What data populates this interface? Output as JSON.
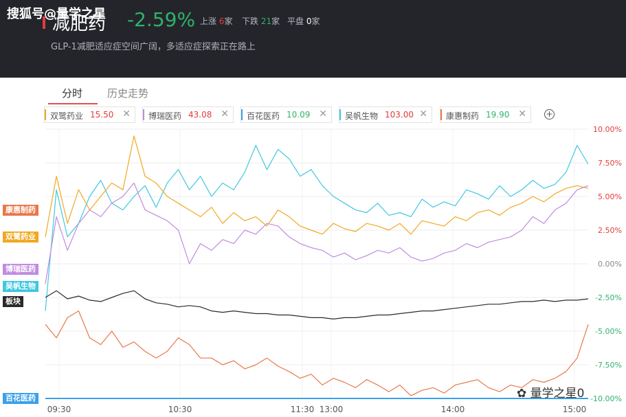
{
  "header": {
    "watermark": "搜狐号@量学之星",
    "title": "减肥药",
    "change": "-2.59%",
    "subtitle": "GLP-1减肥适应症空间广阔，多适应症探索正在路上",
    "stats": [
      {
        "label": "上涨",
        "value": "6",
        "unit": "家",
        "color": "#e23b3b"
      },
      {
        "label": "下跌",
        "value": "21",
        "unit": "家",
        "color": "#2fb26b"
      },
      {
        "label": "平盘",
        "value": "0",
        "unit": "家",
        "color": "#ffffff"
      }
    ]
  },
  "tabs": [
    {
      "label": "分时",
      "active": true
    },
    {
      "label": "历史走势",
      "active": false
    }
  ],
  "tags": [
    {
      "name": "双鹭药业",
      "price": "15.50",
      "color": "#f0a820",
      "price_color": "#e23b3b"
    },
    {
      "name": "博瑞医药",
      "price": "43.08",
      "color": "#c08be0",
      "price_color": "#e23b3b"
    },
    {
      "name": "百花医药",
      "price": "10.09",
      "color": "#3aa0e8",
      "price_color": "#2fb26b"
    },
    {
      "name": "吴帆生物",
      "price": "103.00",
      "color": "#3ec8e0",
      "price_color": "#e23b3b"
    },
    {
      "name": "康惠制药",
      "price": "19.90",
      "color": "#e8784a",
      "price_color": "#2fb26b"
    }
  ],
  "add_symbol": "+",
  "side_labels": [
    {
      "name": "康惠制药",
      "color": "#e8784a",
      "value": 4.0
    },
    {
      "name": "双鹭药业",
      "color": "#f0a820",
      "value": 2.0
    },
    {
      "name": "博瑞医药",
      "color": "#c08be0",
      "value": -0.4
    },
    {
      "name": "吴帆生物",
      "color": "#3ec8e0",
      "value": -1.7
    },
    {
      "name": "板块",
      "color": "#2a2a2a",
      "value": -2.8
    },
    {
      "name": "百花医药",
      "color": "#3aa0e8",
      "value": -10.0
    }
  ],
  "bottom_watermark": "量学之星0",
  "chart_data": {
    "type": "line",
    "x_ticks": [
      "09:30",
      "10:30",
      "11:30",
      "13:00",
      "14:00",
      "15:00"
    ],
    "y_ticks": [
      "10.00%",
      "7.50%",
      "5.00%",
      "2.50%",
      "0.00%",
      "-2.50%",
      "-5.00%",
      "-7.50%",
      "-10.00%"
    ],
    "ylim": [
      -10.0,
      10.0
    ],
    "y_tick_values": [
      10,
      7.5,
      5,
      2.5,
      0,
      -2.5,
      -5,
      -7.5,
      -10
    ],
    "grid": true,
    "series": [
      {
        "name": "吴帆生物",
        "color": "#3ec8e0",
        "values": [
          -3.5,
          5.5,
          2.0,
          3.0,
          5.0,
          6.2,
          4.5,
          4.0,
          5.0,
          5.8,
          4.2,
          6.0,
          7.0,
          5.5,
          6.5,
          5.0,
          6.0,
          5.5,
          6.8,
          8.8,
          7.0,
          8.5,
          7.8,
          6.5,
          7.0,
          5.8,
          5.0,
          4.5,
          4.0,
          3.8,
          4.5,
          3.6,
          3.8,
          3.5,
          4.8,
          4.2,
          4.6,
          4.3,
          5.5,
          5.2,
          4.8,
          5.8,
          5.0,
          5.5,
          6.2,
          5.6,
          5.9,
          6.8,
          8.8,
          7.4
        ]
      },
      {
        "name": "双鹭药业",
        "color": "#f0a820",
        "values": [
          2.0,
          6.5,
          3.0,
          5.5,
          4.0,
          5.0,
          6.0,
          5.5,
          9.5,
          6.5,
          6.0,
          5.0,
          4.5,
          4.0,
          3.5,
          4.2,
          3.0,
          3.8,
          3.2,
          3.5,
          2.8,
          4.0,
          3.5,
          2.8,
          2.5,
          2.2,
          3.0,
          2.6,
          2.4,
          3.0,
          2.8,
          2.5,
          3.0,
          2.2,
          3.2,
          3.0,
          2.8,
          3.5,
          3.2,
          3.8,
          4.0,
          3.6,
          4.2,
          4.5,
          5.0,
          4.6,
          5.2,
          5.6,
          5.8,
          5.6
        ]
      },
      {
        "name": "博瑞医药",
        "color": "#c08be0",
        "values": [
          -1.5,
          3.5,
          1.0,
          3.0,
          4.0,
          3.5,
          4.5,
          5.0,
          6.0,
          4.0,
          3.6,
          3.2,
          2.5,
          0.0,
          1.5,
          1.0,
          1.8,
          1.5,
          2.5,
          2.2,
          3.0,
          2.8,
          2.0,
          1.5,
          1.2,
          1.0,
          0.5,
          0.8,
          0.3,
          0.6,
          1.0,
          0.8,
          1.2,
          0.5,
          0.2,
          0.4,
          0.8,
          1.0,
          1.5,
          1.2,
          1.6,
          1.8,
          2.0,
          2.5,
          3.5,
          3.0,
          4.0,
          4.5,
          5.5,
          5.8
        ]
      },
      {
        "name": "板块",
        "color": "#2a2a2a",
        "values": [
          -2.5,
          -2.0,
          -2.6,
          -2.4,
          -2.7,
          -2.8,
          -2.5,
          -2.2,
          -2.0,
          -2.6,
          -2.9,
          -3.0,
          -3.2,
          -3.1,
          -3.2,
          -3.5,
          -3.6,
          -3.5,
          -3.6,
          -3.7,
          -3.7,
          -3.8,
          -3.8,
          -3.9,
          -4.0,
          -4.0,
          -4.1,
          -4.0,
          -4.0,
          -3.9,
          -3.8,
          -3.8,
          -3.7,
          -3.6,
          -3.5,
          -3.5,
          -3.4,
          -3.3,
          -3.2,
          -3.1,
          -3.0,
          -3.0,
          -2.9,
          -2.8,
          -2.8,
          -2.7,
          -2.8,
          -2.7,
          -2.7,
          -2.6
        ]
      },
      {
        "name": "康惠制药",
        "color": "#e8784a",
        "values": [
          -4.5,
          -5.5,
          -4.0,
          -3.5,
          -5.5,
          -6.0,
          -5.0,
          -6.2,
          -5.8,
          -6.5,
          -7.0,
          -6.5,
          -5.5,
          -6.0,
          -7.0,
          -7.0,
          -7.5,
          -7.2,
          -7.8,
          -7.5,
          -7.0,
          -7.6,
          -8.0,
          -8.5,
          -8.2,
          -9.0,
          -8.5,
          -8.8,
          -9.2,
          -8.6,
          -9.0,
          -9.5,
          -9.0,
          -9.8,
          -9.4,
          -9.2,
          -9.6,
          -9.0,
          -8.8,
          -8.6,
          -9.2,
          -9.5,
          -9.0,
          -9.2,
          -8.6,
          -8.8,
          -8.5,
          -8.0,
          -7.0,
          -4.5
        ]
      },
      {
        "name": "百花医药",
        "color": "#3aa0e8",
        "values": [
          -10.0,
          -10.0,
          -10.0,
          -10.0,
          -10.0,
          -10.0,
          -10.0,
          -10.0,
          -10.0,
          -10.0,
          -10.0,
          -10.0,
          -10.0,
          -10.0,
          -10.0,
          -10.0,
          -10.0,
          -10.0,
          -10.0,
          -10.0,
          -10.0,
          -10.0,
          -10.0,
          -10.0,
          -10.0,
          -10.0,
          -10.0,
          -10.0,
          -10.0,
          -10.0,
          -10.0,
          -10.0,
          -10.0,
          -10.0,
          -10.0,
          -10.0,
          -10.0,
          -10.0,
          -10.0,
          -10.0,
          -10.0,
          -10.0,
          -10.0,
          -10.0,
          -10.0,
          -10.0,
          -10.0,
          -10.0,
          -10.0,
          -10.0
        ]
      }
    ]
  }
}
